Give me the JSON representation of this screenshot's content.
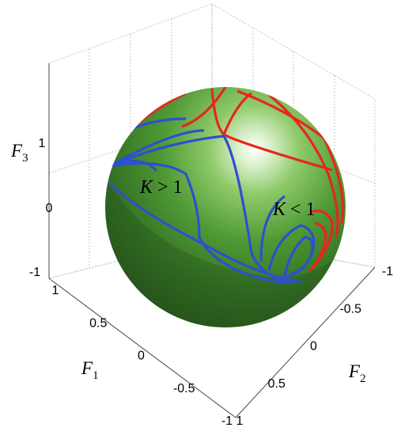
{
  "chart_data": {
    "type": "3d-surface",
    "surface": "sphere",
    "surface_color": "#3f8f2f",
    "axes": {
      "x": {
        "label": "F",
        "label_sub": "1",
        "ticks": [
          "1",
          "0.5",
          "0",
          "-0.5",
          "-1"
        ],
        "range": [
          -1,
          1
        ]
      },
      "y": {
        "label": "F",
        "label_sub": "2",
        "ticks": [
          "1",
          "0.5",
          "0",
          "-0.5",
          "-1"
        ],
        "range": [
          -1,
          1
        ]
      },
      "z": {
        "label": "F",
        "label_sub": "3",
        "ticks": [
          "1",
          "0",
          "-1"
        ],
        "range": [
          -1,
          1
        ]
      }
    },
    "grid": true,
    "series": [
      {
        "color": "#e8251f",
        "region": "K < 1"
      },
      {
        "color": "#2f4fcf",
        "region": "K > 1"
      }
    ],
    "annotations": [
      {
        "lhs": "K",
        "op": " > ",
        "rhs": "1"
      },
      {
        "lhs": "K",
        "op": " < ",
        "rhs": "1"
      }
    ]
  }
}
